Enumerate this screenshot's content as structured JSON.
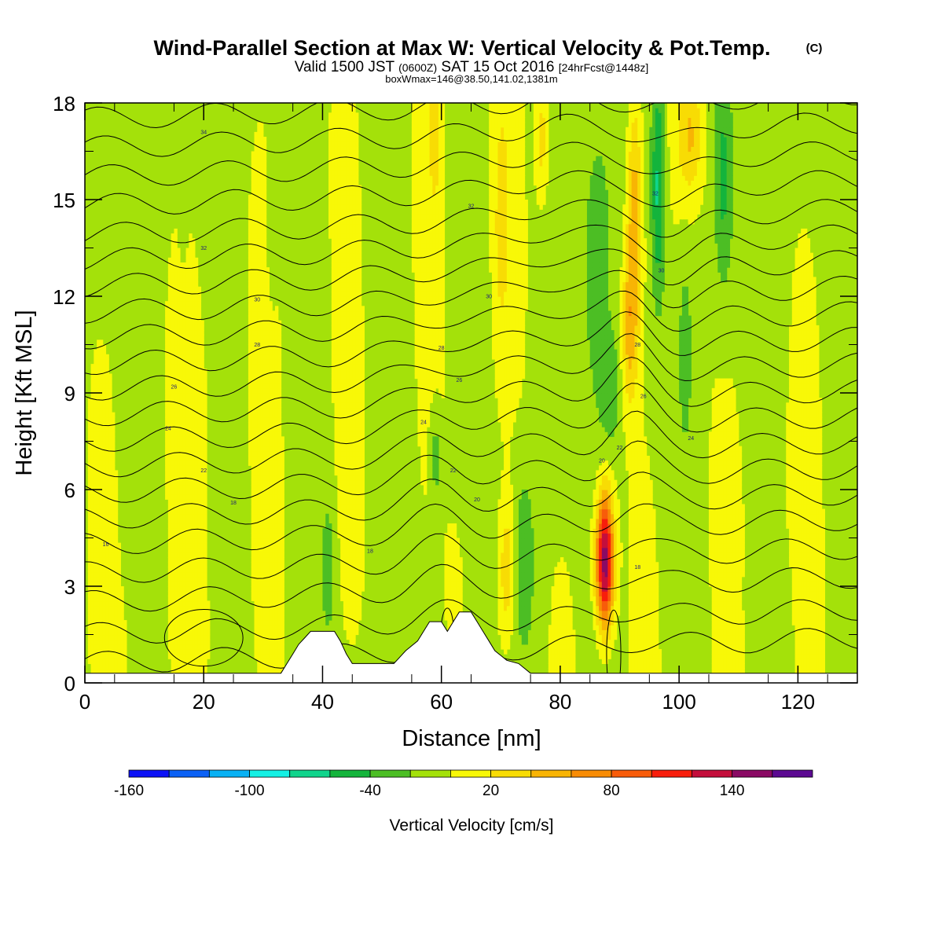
{
  "title": {
    "main": "Wind-Parallel Section at Max W: Vertical Velocity & Pot.Temp.",
    "copyright": "(C)",
    "valid_prefix": "Valid 1500 JST",
    "valid_utc": "(0600Z)",
    "valid_date": "SAT 15 Oct 2016",
    "forecast": "[24hrFcst@1448z]",
    "boxinfo": "boxWmax=146@38.50,141.02,1381m"
  },
  "colors": {
    "frame": "#000000",
    "terrain": "#ffffff",
    "contour": "#000000",
    "background": "#ffffff"
  },
  "chart_data": {
    "type": "heatmap",
    "xlabel": "Distance [nm]",
    "ylabel": "Height [Kft MSL]",
    "xlim": [
      0,
      130
    ],
    "ylim": [
      0,
      18
    ],
    "xticks": [
      0,
      20,
      40,
      60,
      80,
      100,
      120
    ],
    "yticks": [
      0,
      3,
      6,
      9,
      12,
      15,
      18
    ],
    "colorbar": {
      "label": "Vertical Velocity [cm/s]",
      "levels": [
        -160,
        -140,
        -120,
        -100,
        -80,
        -60,
        -40,
        -20,
        0,
        20,
        40,
        60,
        80,
        100,
        120,
        140,
        160
      ],
      "tick_labels": [
        "-160",
        "-100",
        "-40",
        "20",
        "80",
        "140"
      ],
      "tick_values": [
        -160,
        -100,
        -40,
        20,
        80,
        140
      ],
      "colors": [
        "#0c12f6",
        "#0b61f5",
        "#08b1f4",
        "#14f0e4",
        "#10d48c",
        "#14b43c",
        "#4cbe24",
        "#a4e10a",
        "#f8f807",
        "#f8dc04",
        "#f8b404",
        "#f88c04",
        "#f85c0a",
        "#f81e0c",
        "#c40e3c",
        "#8a0a64",
        "#5c0a92"
      ]
    },
    "terrain_kft": [
      [
        0,
        0.3
      ],
      [
        33,
        0.3
      ],
      [
        34,
        0.6
      ],
      [
        35,
        0.9
      ],
      [
        36,
        1.2
      ],
      [
        37,
        1.4
      ],
      [
        38,
        1.6
      ],
      [
        42,
        1.6
      ],
      [
        43,
        1.3
      ],
      [
        44,
        0.9
      ],
      [
        45,
        0.6
      ],
      [
        52,
        0.6
      ],
      [
        53,
        0.8
      ],
      [
        54,
        1.0
      ],
      [
        56,
        1.3
      ],
      [
        57,
        1.6
      ],
      [
        58,
        1.9
      ],
      [
        60,
        1.9
      ],
      [
        61,
        1.6
      ],
      [
        62,
        1.9
      ],
      [
        63,
        2.2
      ],
      [
        65,
        2.2
      ],
      [
        66,
        1.9
      ],
      [
        67,
        1.6
      ],
      [
        68,
        1.3
      ],
      [
        69,
        1.0
      ],
      [
        71,
        0.7
      ],
      [
        73,
        0.6
      ],
      [
        75,
        0.3
      ],
      [
        130,
        0.3
      ]
    ],
    "theta_contour_labels": [
      {
        "x": 3.5,
        "y": 4.3,
        "text": "16"
      },
      {
        "x": 25,
        "y": 5.6,
        "text": "18"
      },
      {
        "x": 20,
        "y": 6.6,
        "text": "22"
      },
      {
        "x": 14,
        "y": 7.9,
        "text": "24"
      },
      {
        "x": 15,
        "y": 9.2,
        "text": "26"
      },
      {
        "x": 29,
        "y": 10.5,
        "text": "28"
      },
      {
        "x": 29,
        "y": 11.9,
        "text": "30"
      },
      {
        "x": 20,
        "y": 13.5,
        "text": "32"
      },
      {
        "x": 20,
        "y": 17.1,
        "text": "34"
      },
      {
        "x": 48,
        "y": 4.1,
        "text": "18"
      },
      {
        "x": 57,
        "y": 8.1,
        "text": "24"
      },
      {
        "x": 62,
        "y": 6.6,
        "text": "22"
      },
      {
        "x": 66,
        "y": 5.7,
        "text": "20"
      },
      {
        "x": 63,
        "y": 9.4,
        "text": "26"
      },
      {
        "x": 60,
        "y": 10.4,
        "text": "28"
      },
      {
        "x": 68,
        "y": 12.0,
        "text": "30"
      },
      {
        "x": 65,
        "y": 14.8,
        "text": "32"
      },
      {
        "x": 87,
        "y": 6.9,
        "text": "20"
      },
      {
        "x": 90,
        "y": 7.3,
        "text": "22"
      },
      {
        "x": 94,
        "y": 8.9,
        "text": "26"
      },
      {
        "x": 102,
        "y": 7.6,
        "text": "24"
      },
      {
        "x": 93,
        "y": 3.6,
        "text": "18"
      },
      {
        "x": 93,
        "y": 10.5,
        "text": "28"
      },
      {
        "x": 97,
        "y": 12.8,
        "text": "30"
      },
      {
        "x": 96,
        "y": 15.2,
        "text": "32"
      }
    ]
  }
}
